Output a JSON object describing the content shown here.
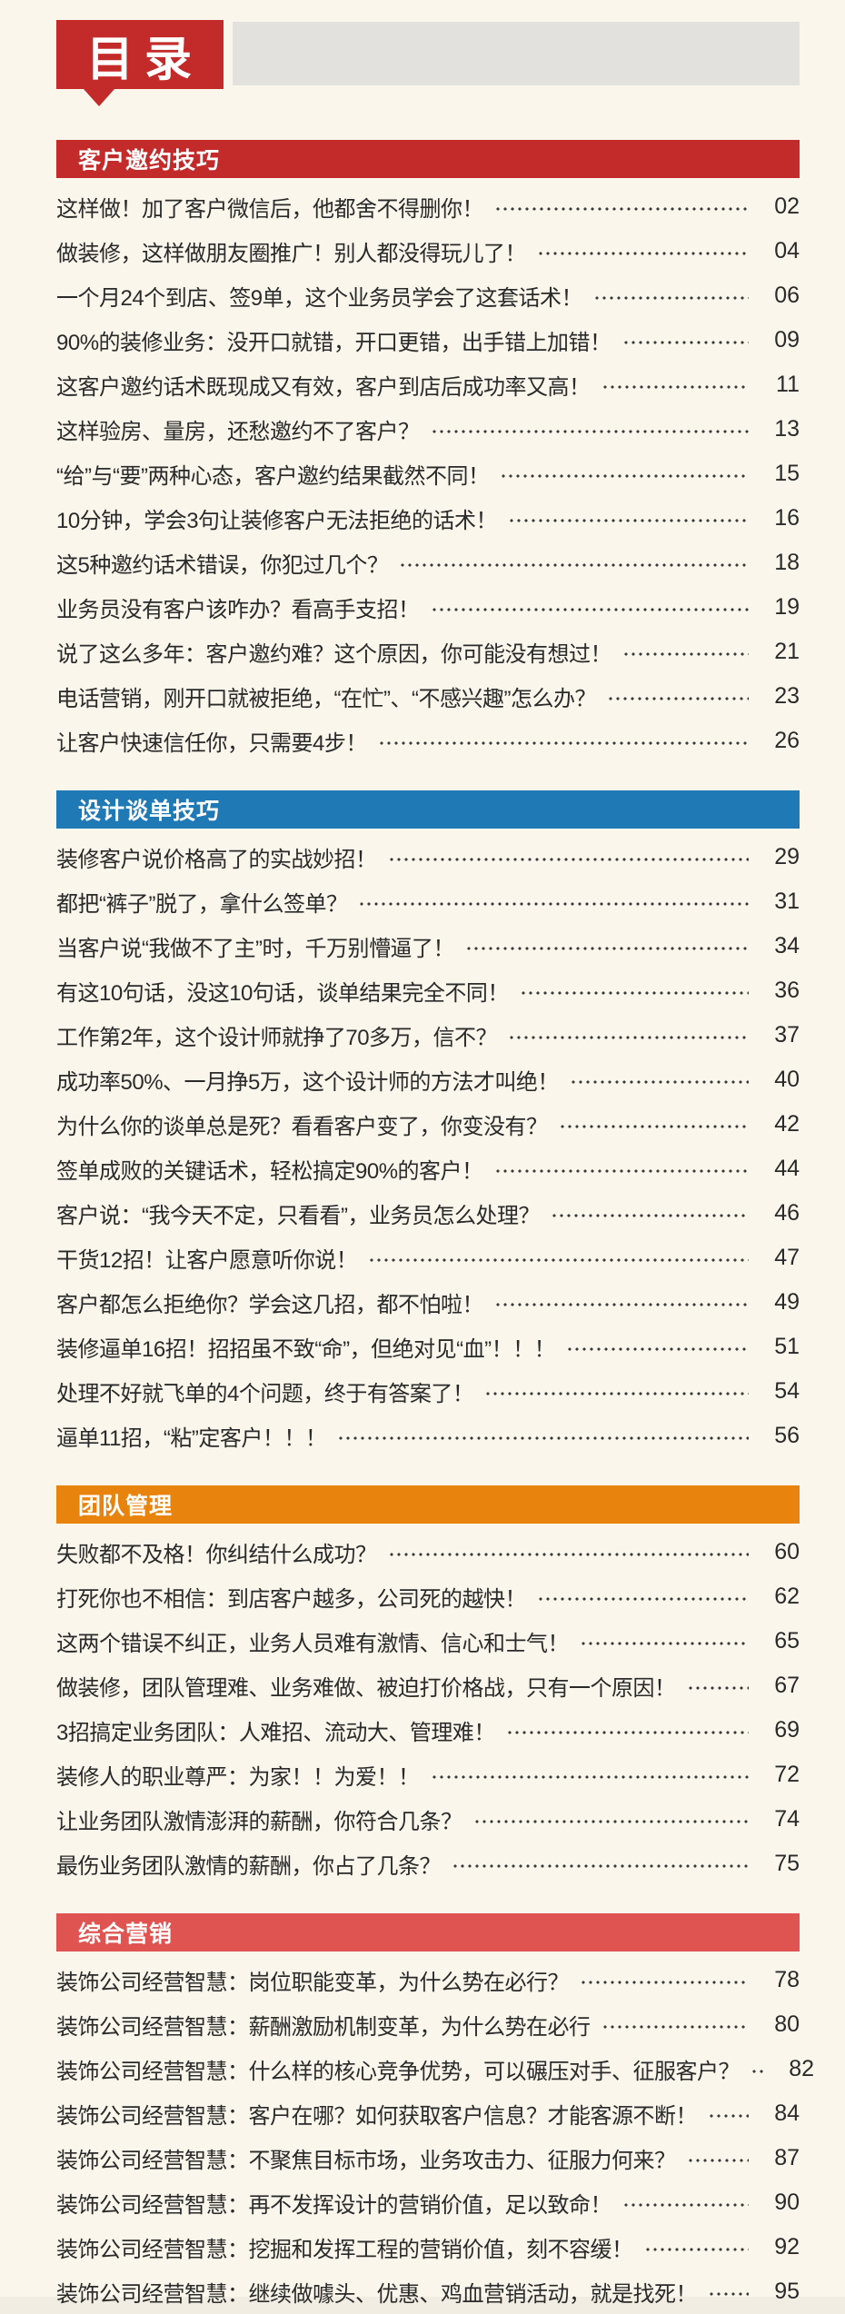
{
  "theme": {
    "background": "#faf6ec",
    "badge_red": "#c32b2b",
    "banner_gray": "#e3e1de",
    "text_color": "#2a2a2a",
    "section_colors": {
      "red": "#c32b2b",
      "blue": "#1e79b5",
      "orange": "#e8830e",
      "light_red": "#df5450"
    }
  },
  "header": {
    "title": "目录"
  },
  "sections": [
    {
      "title": "客户邀约技巧",
      "accent": "#c32b2b",
      "items": [
        {
          "title": "这样做！加了客户微信后，他都舍不得删你！",
          "page": "02"
        },
        {
          "title": "做装修，这样做朋友圈推广！别人都没得玩儿了！",
          "page": "04"
        },
        {
          "title": "一个月24个到店、签9单，这个业务员学会了这套话术！",
          "page": "06"
        },
        {
          "title": "90%的装修业务：没开口就错，开口更错，出手错上加错！",
          "page": "09"
        },
        {
          "title": "这客户邀约话术既现成又有效，客户到店后成功率又高！",
          "page": "11"
        },
        {
          "title": "这样验房、量房，还愁邀约不了客户？",
          "page": "13"
        },
        {
          "title": "“给”与“要”两种心态，客户邀约结果截然不同！",
          "page": "15"
        },
        {
          "title": "10分钟，学会3句让装修客户无法拒绝的话术！",
          "page": "16"
        },
        {
          "title": "这5种邀约话术错误，你犯过几个？",
          "page": "18"
        },
        {
          "title": "业务员没有客户该咋办？看高手支招！",
          "page": "19"
        },
        {
          "title": "说了这么多年：客户邀约难？这个原因，你可能没有想过！",
          "page": "21"
        },
        {
          "title": "电话营销，刚开口就被拒绝，“在忙”、“不感兴趣”怎么办？",
          "page": "23"
        },
        {
          "title": "让客户快速信任你，只需要4步！",
          "page": "26"
        }
      ]
    },
    {
      "title": "设计谈单技巧",
      "accent": "#1e79b5",
      "items": [
        {
          "title": "装修客户说价格高了的实战妙招！",
          "page": "29"
        },
        {
          "title": "都把“裤子”脱了，拿什么签单？",
          "page": "31"
        },
        {
          "title": "当客户说“我做不了主”时，千万别懵逼了！",
          "page": "34"
        },
        {
          "title": "有这10句话，没这10句话，谈单结果完全不同！",
          "page": "36"
        },
        {
          "title": "工作第2年，这个设计师就挣了70多万，信不？",
          "page": "37"
        },
        {
          "title": "成功率50%、一月挣5万，这个设计师的方法才叫绝！",
          "page": "40"
        },
        {
          "title": "为什么你的谈单总是死？看看客户变了，你变没有？",
          "page": "42"
        },
        {
          "title": "签单成败的关键话术，轻松搞定90%的客户！",
          "page": "44"
        },
        {
          "title": "客户说：“我今天不定，只看看”，业务员怎么处理？",
          "page": "46"
        },
        {
          "title": "干货12招！让客户愿意听你说！",
          "page": "47"
        },
        {
          "title": "客户都怎么拒绝你？学会这几招，都不怕啦！",
          "page": "49"
        },
        {
          "title": "装修逼单16招！招招虽不致“命”，但绝对见“血”！！！",
          "page": "51"
        },
        {
          "title": "处理不好就飞单的4个问题，终于有答案了！",
          "page": "54"
        },
        {
          "title": "逼单11招，“粘”定客户！！！",
          "page": "56"
        }
      ]
    },
    {
      "title": "团队管理",
      "accent": "#e8830e",
      "items": [
        {
          "title": "失败都不及格！你纠结什么成功？",
          "page": "60"
        },
        {
          "title": "打死你也不相信：到店客户越多，公司死的越快！",
          "page": "62"
        },
        {
          "title": "这两个错误不纠正，业务人员难有激情、信心和士气！",
          "page": "65"
        },
        {
          "title": "做装修，团队管理难、业务难做、被迫打价格战，只有一个原因！",
          "page": "67"
        },
        {
          "title": "3招搞定业务团队：人难招、流动大、管理难！",
          "page": "69"
        },
        {
          "title": "装修人的职业尊严：为家！！为爱！！",
          "page": "72"
        },
        {
          "title": "让业务团队激情澎湃的薪酬，你符合几条？",
          "page": "74"
        },
        {
          "title": "最伤业务团队激情的薪酬，你占了几条？",
          "page": "75"
        }
      ]
    },
    {
      "title": "综合营销",
      "accent": "#df5450",
      "items": [
        {
          "title": "装饰公司经营智慧：岗位职能变革，为什么势在必行？",
          "page": "78"
        },
        {
          "title": "装饰公司经营智慧：薪酬激励机制变革，为什么势在必行",
          "page": "80"
        },
        {
          "title": "装饰公司经营智慧：什么样的核心竞争优势，可以碾压对手、征服客户？",
          "page": "82"
        },
        {
          "title": "装饰公司经营智慧：客户在哪？如何获取客户信息？才能客源不断！",
          "page": "84"
        },
        {
          "title": "装饰公司经营智慧：不聚焦目标市场，业务攻击力、征服力何来？",
          "page": "87"
        },
        {
          "title": "装饰公司经营智慧：再不发挥设计的营销价值，足以致命！",
          "page": "90"
        },
        {
          "title": "装饰公司经营智慧：挖掘和发挥工程的营销价值，刻不容缓！",
          "page": "92"
        },
        {
          "title": "装饰公司经营智慧：继续做噱头、优惠、鸡血营销活动，就是找死！",
          "page": "95"
        }
      ]
    }
  ]
}
